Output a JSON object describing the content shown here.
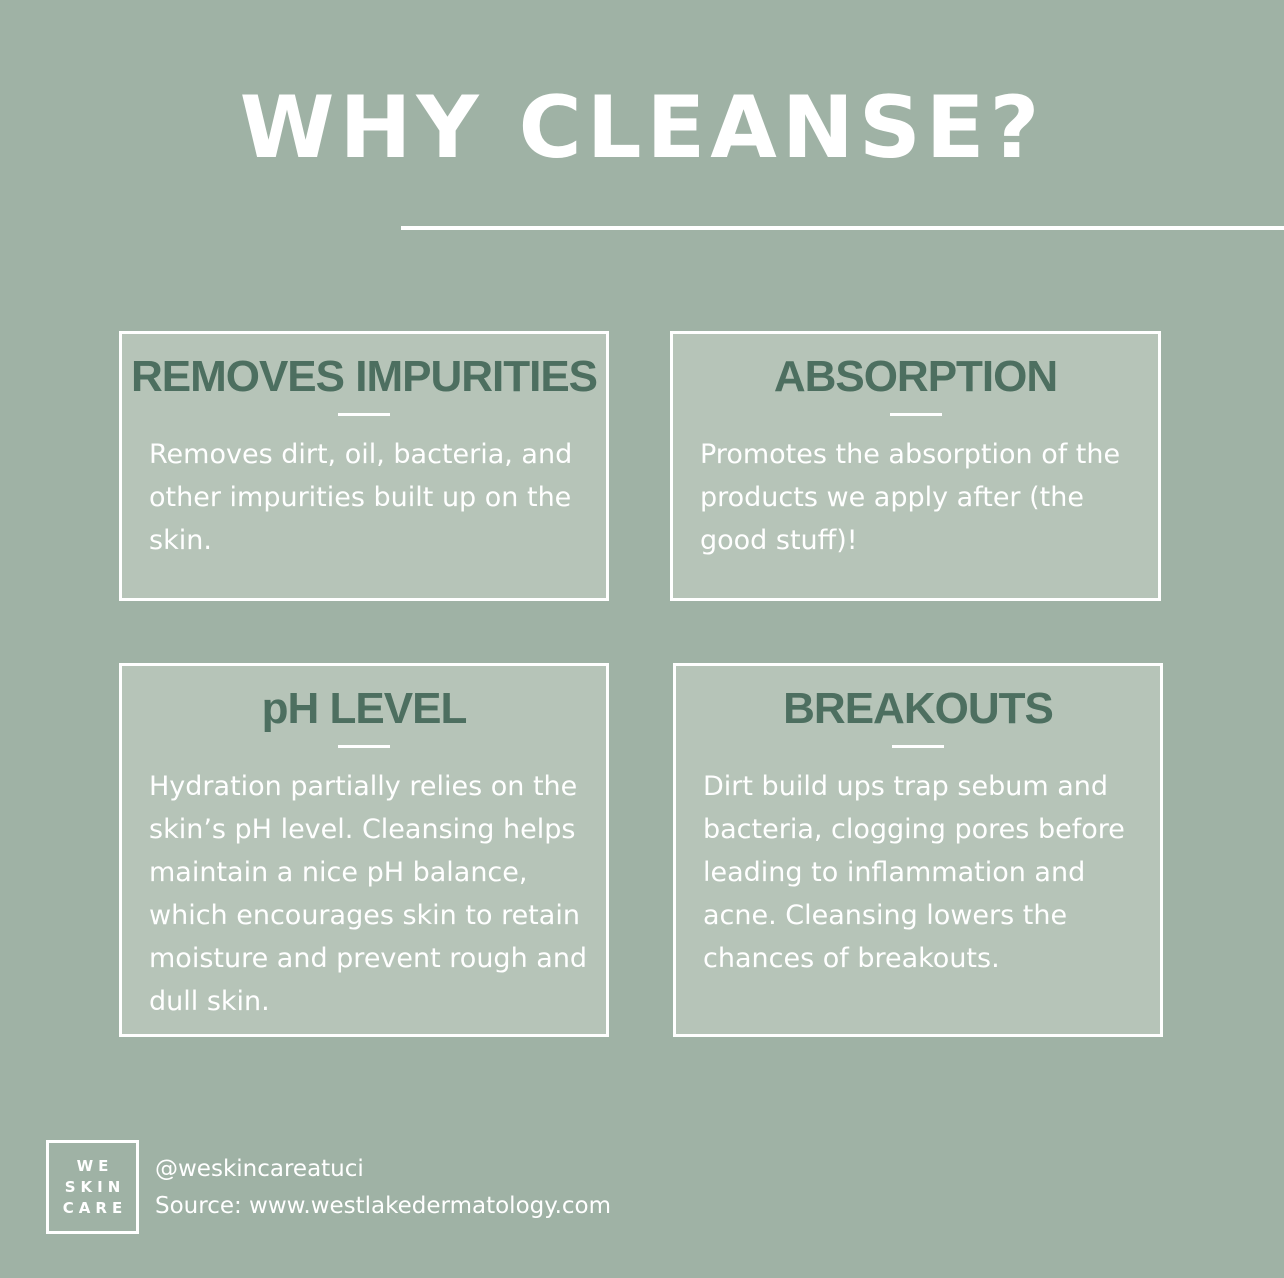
{
  "title": "WHY CLEANSE?",
  "cards": [
    {
      "heading": "REMOVES IMPURITIES",
      "body": "Removes dirt, oil, bacteria, and other impurities built up on the skin."
    },
    {
      "heading": "ABSORPTION",
      "body": "Promotes the absorption of the products we apply after (the good stuff)!"
    },
    {
      "heading": "pH LEVEL",
      "body": "Hydration partially relies on the skin’s pH level. Cleansing helps maintain a nice pH balance, which encourages skin to retain moisture and prevent rough and dull skin."
    },
    {
      "heading": "BREAKOUTS",
      "body": "Dirt build ups trap sebum and bacteria, clogging pores before leading to inflammation and acne. Cleansing lowers the chances of breakouts."
    }
  ],
  "logo": {
    "lines": [
      "WE",
      "SKIN",
      "CARE"
    ]
  },
  "footer": {
    "handle": "@weskincareatuci",
    "source": "Source: www.westlakedermatology.com"
  },
  "colors": {
    "background": "#9fb2a5",
    "card_fill": "#b6c4b8",
    "heading": "#4d6f60",
    "text": "#ffffff"
  }
}
